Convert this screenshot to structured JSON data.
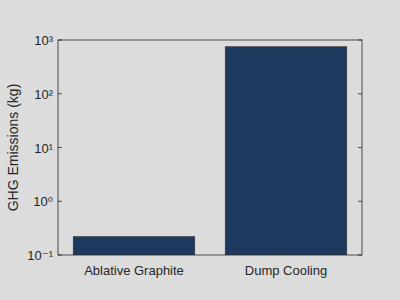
{
  "chart_data": {
    "type": "bar",
    "y_label": "GHG Emissions (kg)",
    "categories": [
      "Ablative Graphite",
      "Dump Cooling"
    ],
    "values": [
      0.22,
      750
    ],
    "color": "#1f3a5f",
    "log": "y",
    "ylim": [
      0.1,
      1000
    ],
    "yticks": [
      {
        "value": 0.1,
        "label": "10⁻¹"
      },
      {
        "value": 1,
        "label": "10⁰"
      },
      {
        "value": 10,
        "label": "10¹"
      },
      {
        "value": 100,
        "label": "10²"
      },
      {
        "value": 1000,
        "label": "10³"
      }
    ]
  }
}
